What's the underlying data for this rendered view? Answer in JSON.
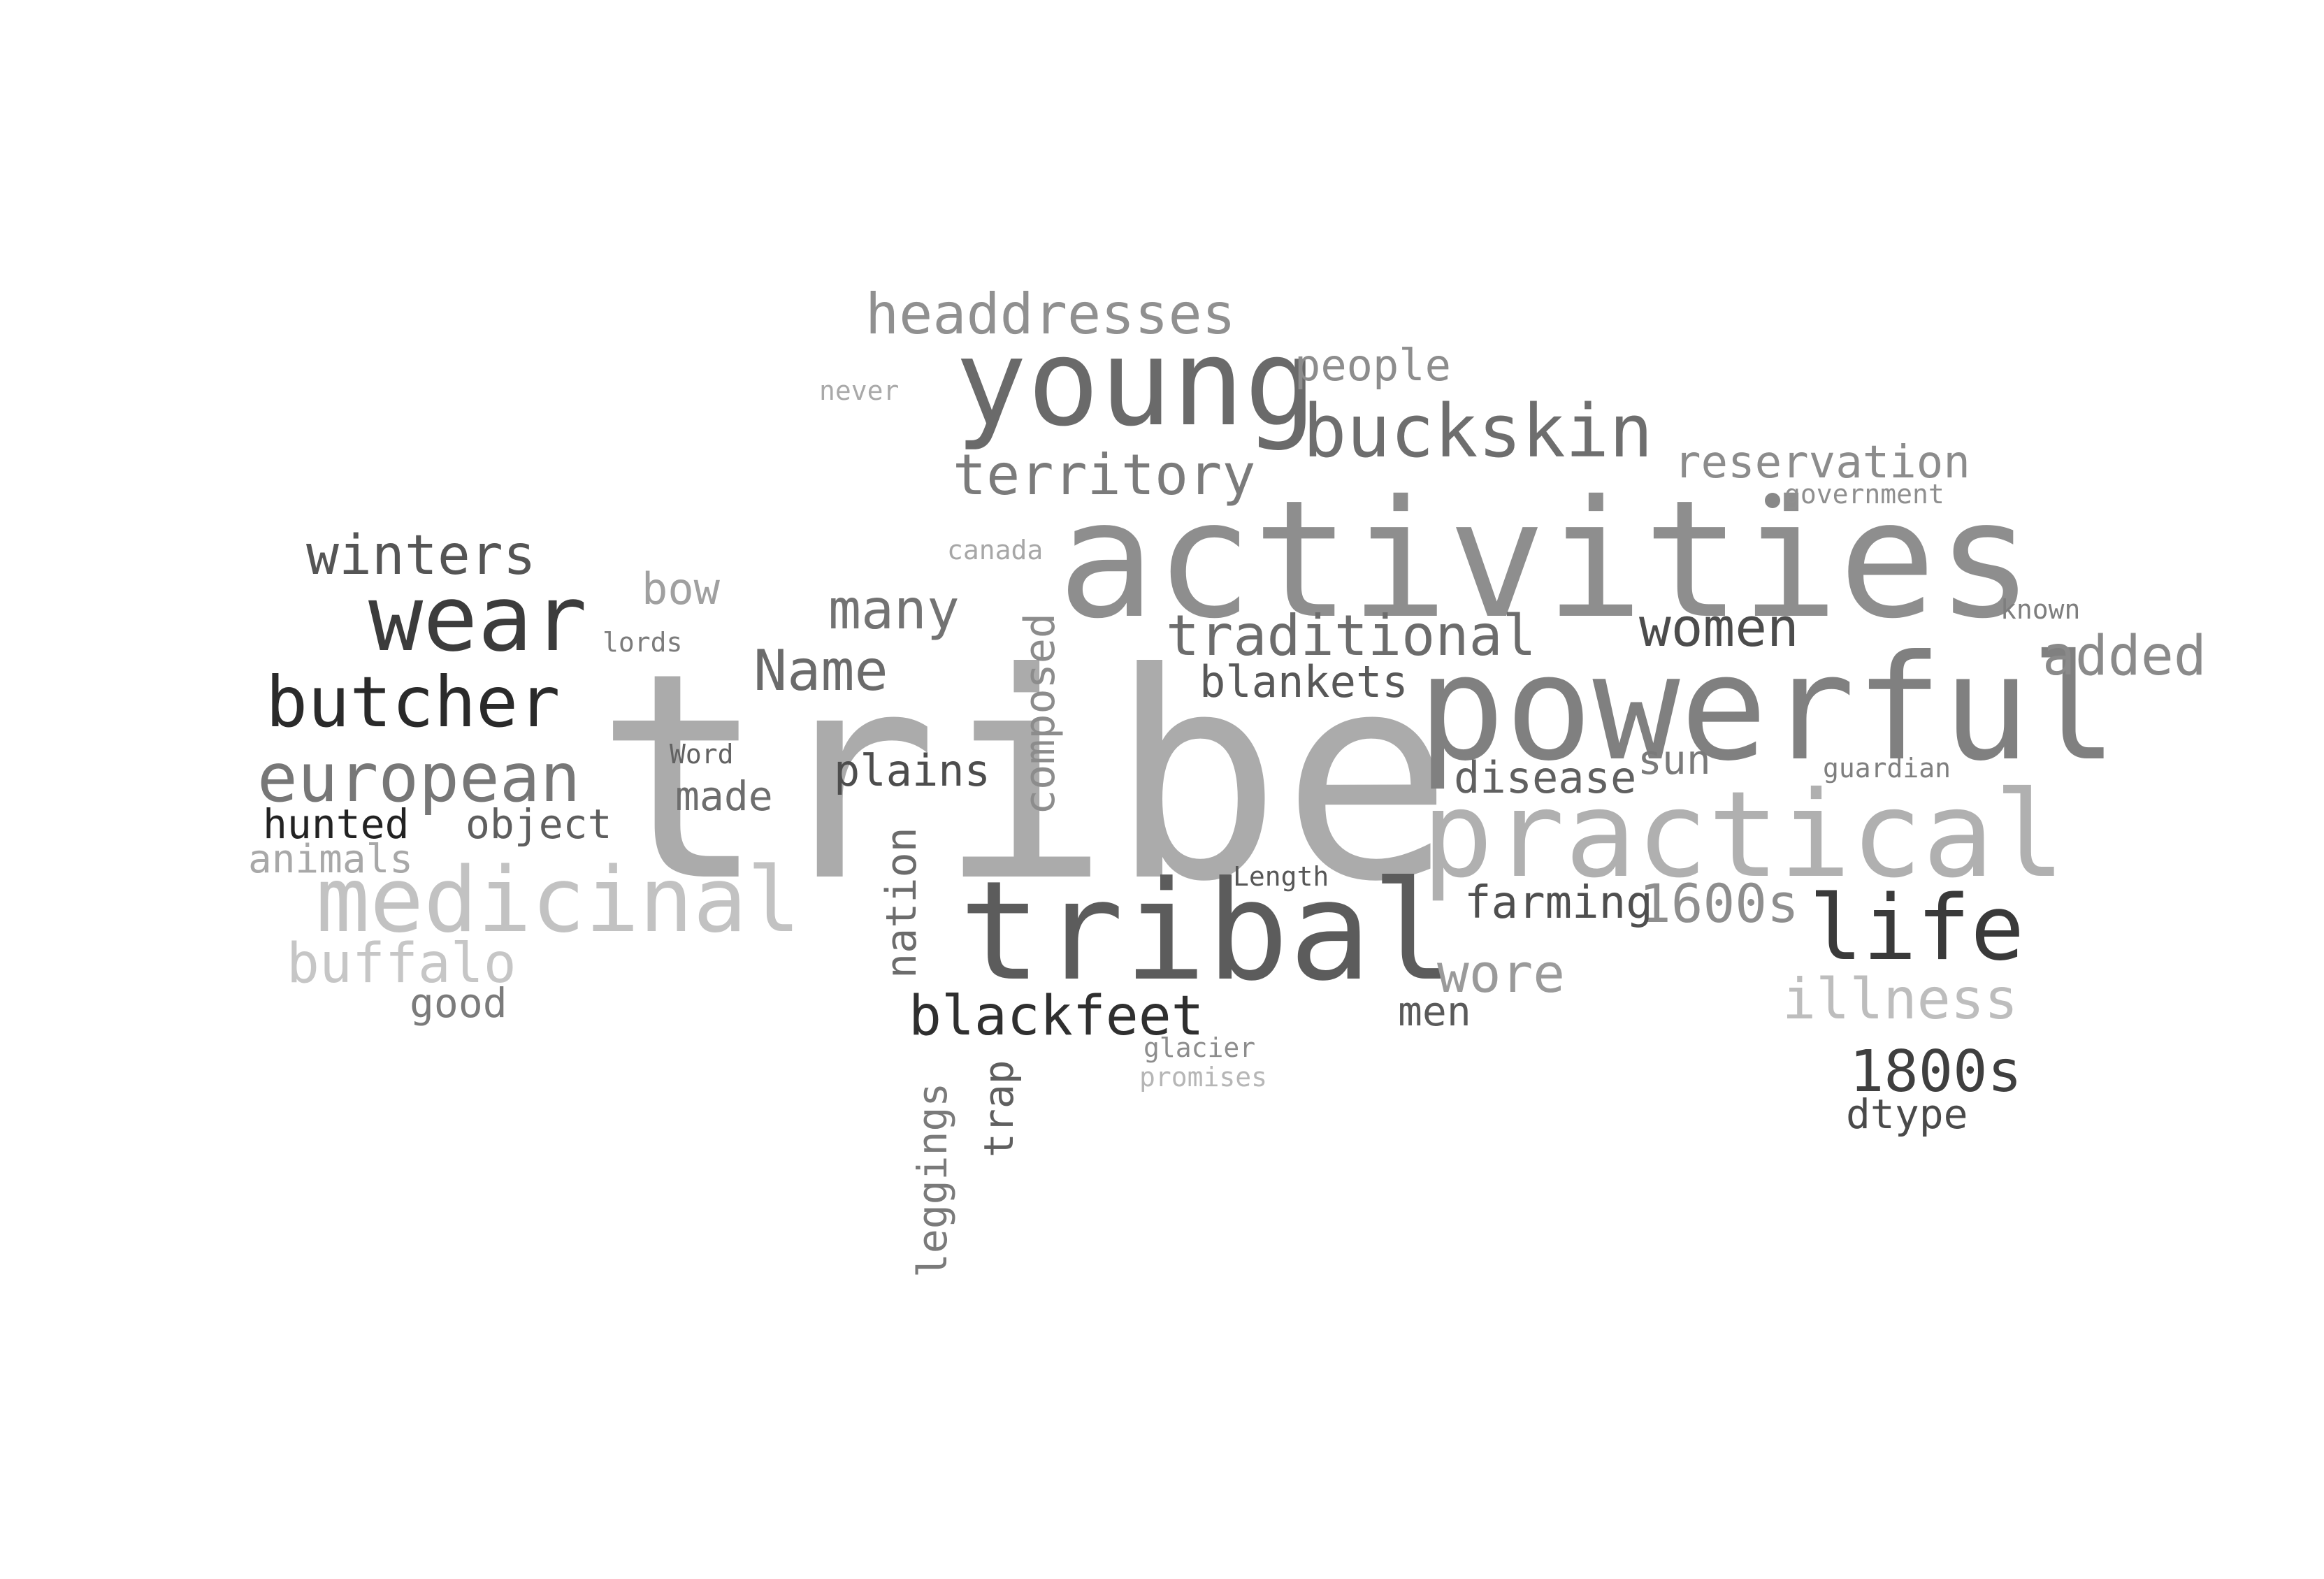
{
  "word_cloud": {
    "words": [
      {
        "text": "tribe",
        "color": "#ababab"
      },
      {
        "text": "activities",
        "color": "#8e8e8e"
      },
      {
        "text": "powerful",
        "color": "#808080"
      },
      {
        "text": "tribal",
        "color": "#5c5c5c"
      },
      {
        "text": "young",
        "color": "#6a6a6a"
      },
      {
        "text": "practical",
        "color": "#b0b0b0"
      },
      {
        "text": "medicinal",
        "color": "#c2c2c2"
      },
      {
        "text": "wear",
        "color": "#3c3c3c"
      },
      {
        "text": "life",
        "color": "#3a3a3a"
      },
      {
        "text": "buckskin",
        "color": "#6e6e6e"
      },
      {
        "text": "butcher",
        "color": "#2a2a2a"
      },
      {
        "text": "european",
        "color": "#777777"
      },
      {
        "text": "headdresses",
        "color": "#909090"
      },
      {
        "text": "territory",
        "color": "#7b7b7b"
      },
      {
        "text": "traditional",
        "color": "#6c6c6c"
      },
      {
        "text": "winters",
        "color": "#555555"
      },
      {
        "text": "blackfeet",
        "color": "#2f2f2f"
      },
      {
        "text": "illness",
        "color": "#bdbdbd"
      },
      {
        "text": "1800s",
        "color": "#3f3f3f"
      },
      {
        "text": "buffalo",
        "color": "#c6c6c6"
      },
      {
        "text": "Name",
        "color": "#6b6b6b"
      },
      {
        "text": "many",
        "color": "#737373"
      },
      {
        "text": "women",
        "color": "#4c4c4c"
      },
      {
        "text": "added",
        "color": "#8a8a8a"
      },
      {
        "text": "reservation",
        "color": "#8c8c8c"
      },
      {
        "text": "1600s",
        "color": "#8e8e8e"
      },
      {
        "text": "wore",
        "color": "#9a9a9a"
      },
      {
        "text": "blankets",
        "color": "#585858"
      },
      {
        "text": "disease",
        "color": "#606060"
      },
      {
        "text": "farming",
        "color": "#4f4f4f"
      },
      {
        "text": "people",
        "color": "#8d8d8d"
      },
      {
        "text": "plains",
        "color": "#4d4d4d"
      },
      {
        "text": "bow",
        "color": "#a0a0a0"
      },
      {
        "text": "hunted",
        "color": "#222222"
      },
      {
        "text": "object",
        "color": "#5e5e5e"
      },
      {
        "text": "made",
        "color": "#6d6d6d"
      },
      {
        "text": "animals",
        "color": "#a8a8a8"
      },
      {
        "text": "good",
        "color": "#7b7b7b"
      },
      {
        "text": "sun",
        "color": "#7a7a7a"
      },
      {
        "text": "dtype",
        "color": "#4a4a4a"
      },
      {
        "text": "men",
        "color": "#5a5a5a"
      },
      {
        "text": "composed",
        "color": "#8c8c8c"
      },
      {
        "text": "nation",
        "color": "#6c6c6c"
      },
      {
        "text": "trap",
        "color": "#5f5f5f"
      },
      {
        "text": "leggings",
        "color": "#7a7a7a"
      },
      {
        "text": "never",
        "color": "#a9a9a9"
      },
      {
        "text": "canada",
        "color": "#a7a7a7"
      },
      {
        "text": "lords",
        "color": "#7c7c7c"
      },
      {
        "text": "Word",
        "color": "#626262"
      },
      {
        "text": "government",
        "color": "#8f8f8f"
      },
      {
        "text": "known",
        "color": "#7e7e7e"
      },
      {
        "text": "guardian",
        "color": "#7f7f7f"
      },
      {
        "text": "Length",
        "color": "#575757"
      },
      {
        "text": "glacier",
        "color": "#8d8d8d"
      },
      {
        "text": "promises",
        "color": "#b6b6b6"
      }
    ],
    "dot_color": "#888888"
  }
}
